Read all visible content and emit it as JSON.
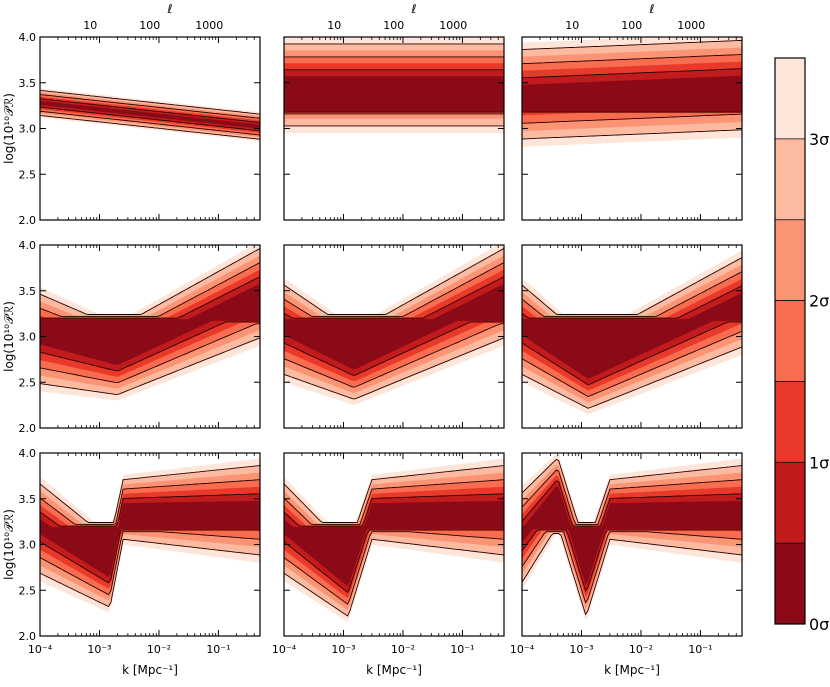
{
  "chart_data": {
    "type": "area",
    "layout": "3x3 grid of posterior contour panels with shared colorbar",
    "xlabel": "k [Mpc⁻¹]",
    "ylabel": "log(10¹⁰𝒫ℛ)",
    "top_xlabel": "ℓ",
    "xscale": "log",
    "xlim": [
      0.0001,
      0.5
    ],
    "ylim": [
      2.0,
      4.0
    ],
    "x_ticks": [
      "10⁻⁴",
      "10⁻³",
      "10⁻²",
      "10⁻¹"
    ],
    "x_tick_values": [
      0.0001,
      0.001,
      0.01,
      0.1
    ],
    "y_ticks": [
      "2.0",
      "2.5",
      "3.0",
      "3.5",
      "4.0"
    ],
    "y_tick_values": [
      2.0,
      2.5,
      3.0,
      3.5,
      4.0
    ],
    "top_ticks": [
      "10",
      "100",
      "1000"
    ],
    "top_tick_k": [
      0.0007,
      0.007,
      0.07
    ],
    "colorbar": {
      "ticks": [
        "0σ",
        "1σ",
        "2σ",
        "3σ"
      ],
      "tick_values": [
        0,
        1,
        2,
        3
      ],
      "range": [
        0,
        3.5
      ],
      "bands": [
        "#8b0a17",
        "#c11b1d",
        "#e8392b",
        "#f86d4f",
        "#fb9474",
        "#fcbba1",
        "#fde6d9"
      ]
    },
    "panels": [
      {
        "row": 0,
        "col": 0,
        "nodes": [],
        "center_y": 3.28,
        "center_y_end": 3.02,
        "width": 0.16
      },
      {
        "row": 0,
        "col": 1,
        "nodes": [
          [
            0.0001,
            3.5,
            0.55
          ],
          [
            0.5,
            3.5,
            0.55
          ]
        ],
        "center_y": 3.2
      },
      {
        "row": 0,
        "col": 2,
        "nodes": [
          [
            0.0001,
            3.4,
            0.6
          ],
          [
            0.5,
            3.5,
            0.6
          ]
        ],
        "center_y": 3.2
      },
      {
        "row": 1,
        "col": 0,
        "nodes": [
          [
            0.0001,
            3.0,
            0.6
          ],
          [
            0.002,
            2.75,
            0.45
          ],
          [
            0.5,
            3.5,
            0.6
          ]
        ],
        "center_y": 3.18
      },
      {
        "row": 1,
        "col": 1,
        "nodes": [
          [
            0.0001,
            3.1,
            0.6
          ],
          [
            0.0015,
            2.7,
            0.45
          ],
          [
            0.5,
            3.5,
            0.6
          ]
        ],
        "center_y": 3.18
      },
      {
        "row": 1,
        "col": 2,
        "nodes": [
          [
            0.0001,
            3.1,
            0.6
          ],
          [
            0.0013,
            2.6,
            0.45
          ],
          [
            0.5,
            3.4,
            0.6
          ]
        ],
        "center_y": 3.18
      },
      {
        "row": 2,
        "col": 0,
        "nodes": [
          [
            0.0001,
            3.2,
            0.6
          ],
          [
            0.0015,
            2.7,
            0.45
          ],
          [
            0.0025,
            3.4,
            0.4
          ],
          [
            0.5,
            3.4,
            0.6
          ]
        ],
        "center_y": 3.18
      },
      {
        "row": 2,
        "col": 1,
        "nodes": [
          [
            0.0001,
            3.2,
            0.6
          ],
          [
            0.0012,
            2.6,
            0.45
          ],
          [
            0.003,
            3.4,
            0.4
          ],
          [
            0.5,
            3.4,
            0.6
          ]
        ],
        "center_y": 3.18
      },
      {
        "row": 2,
        "col": 2,
        "nodes": [
          [
            0.0001,
            3.1,
            0.6
          ],
          [
            0.0004,
            3.6,
            0.45
          ],
          [
            0.0012,
            2.6,
            0.45
          ],
          [
            0.003,
            3.4,
            0.4
          ],
          [
            0.5,
            3.4,
            0.6
          ]
        ],
        "center_y": 3.18
      }
    ]
  }
}
